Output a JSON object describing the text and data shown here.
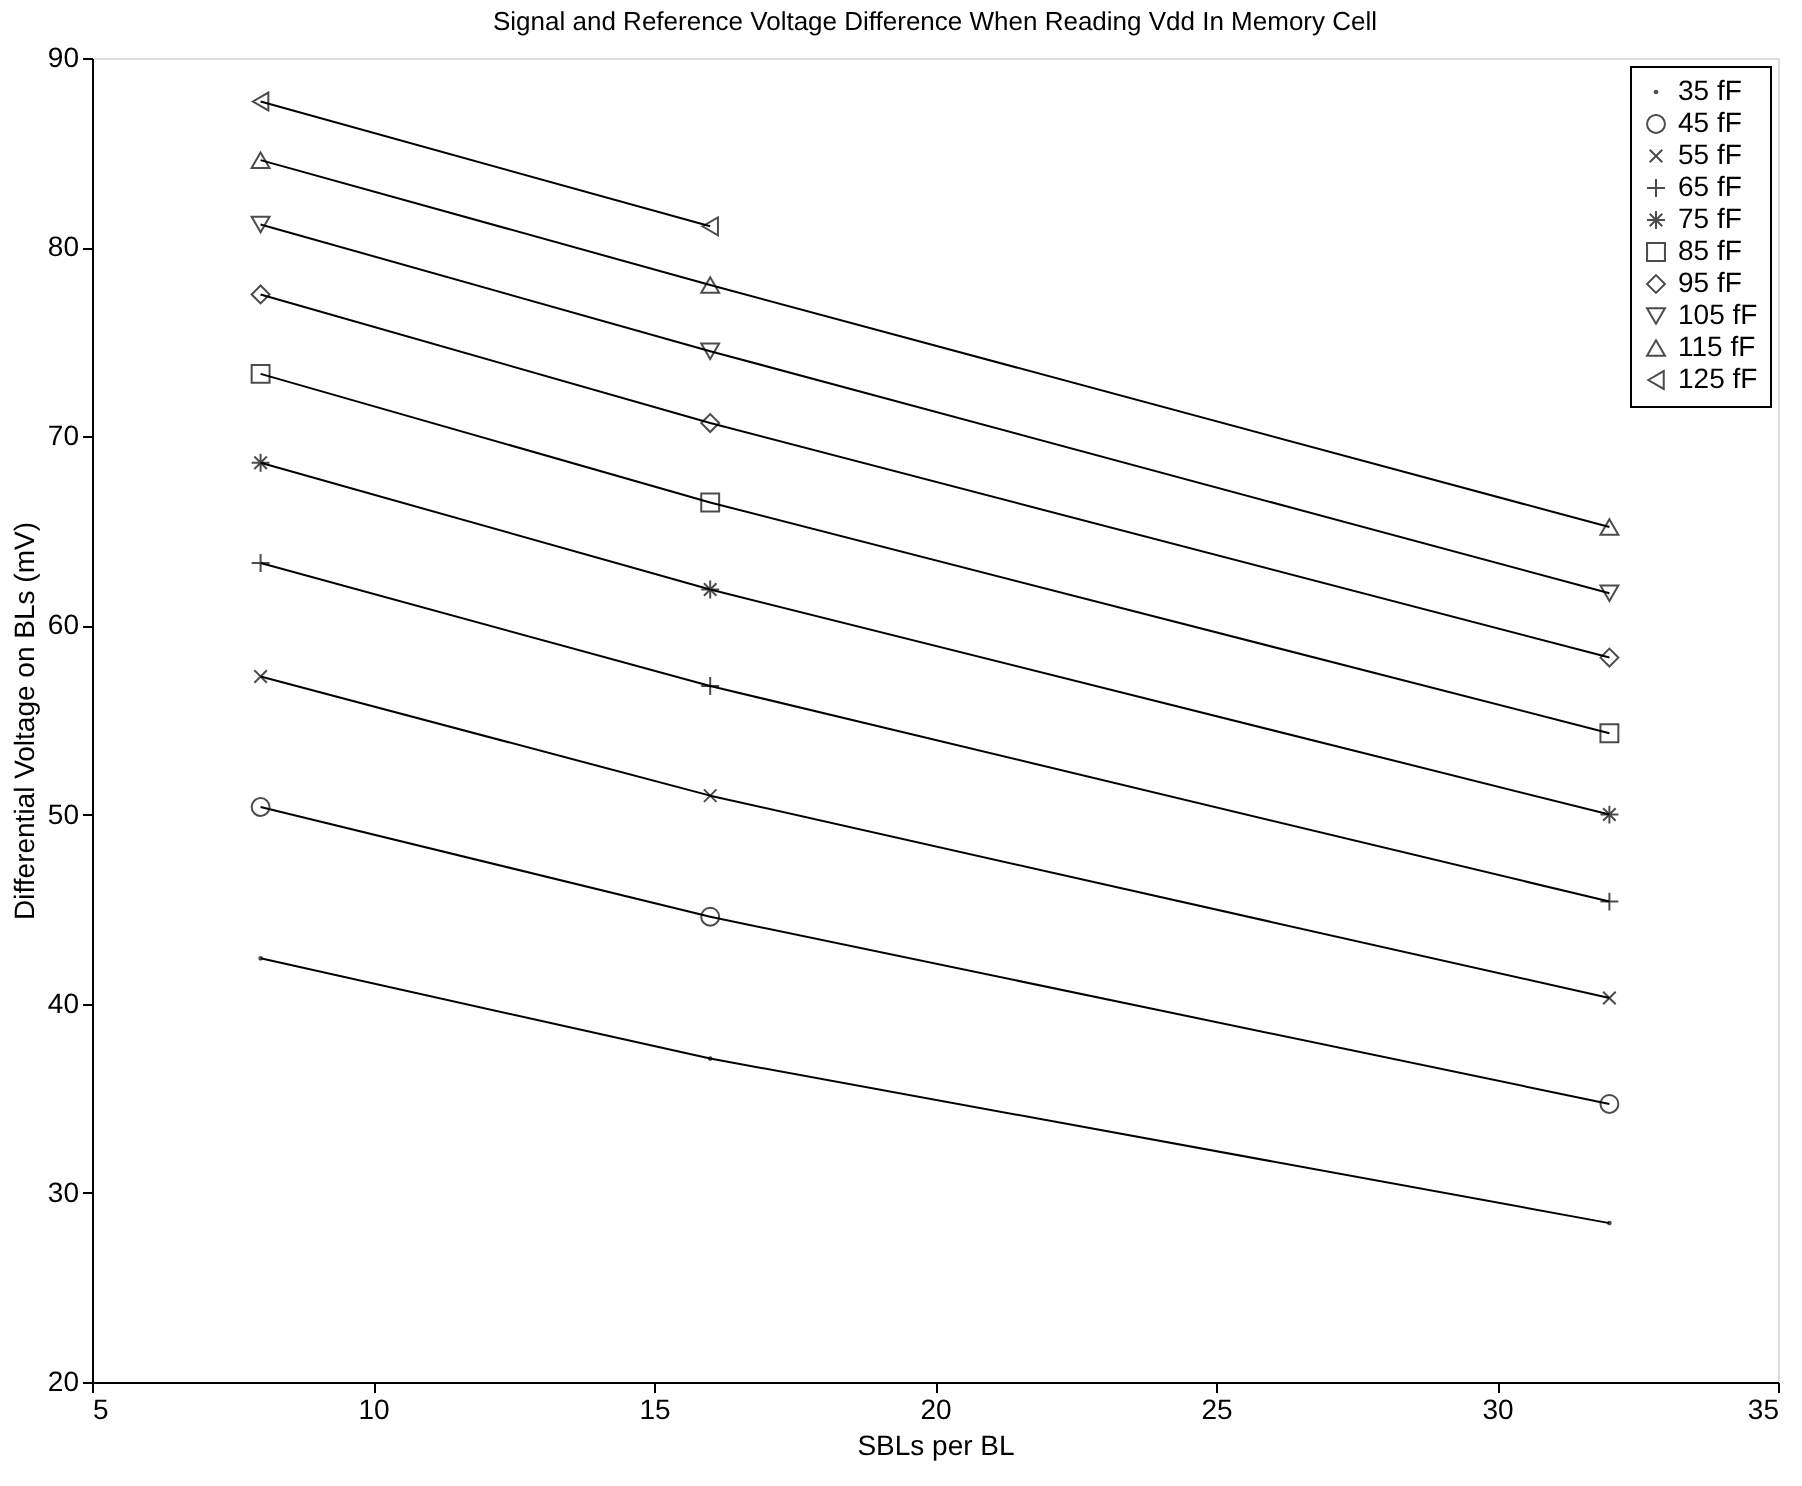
{
  "chart_data": {
    "type": "line",
    "title": "Signal and Reference Voltage Difference When Reading Vdd In Memory Cell",
    "xlabel": "SBLs per BL",
    "ylabel": "Differential Voltage on BLs (mV)",
    "x": [
      8,
      16,
      32
    ],
    "series": [
      {
        "name": "35 fF",
        "color": "#000000",
        "marker": "point",
        "values": [
          42.4,
          37.1,
          28.4
        ]
      },
      {
        "name": "45 fF",
        "color": "#000000",
        "marker": "circle",
        "values": [
          50.4,
          44.6,
          34.7
        ]
      },
      {
        "name": "55 fF",
        "color": "#000000",
        "marker": "x",
        "values": [
          57.3,
          51.0,
          40.3
        ]
      },
      {
        "name": "65 fF",
        "color": "#000000",
        "marker": "plus",
        "values": [
          63.3,
          56.8,
          45.4
        ]
      },
      {
        "name": "75 fF",
        "color": "#000000",
        "marker": "cross",
        "values": [
          68.6,
          61.9,
          50.0
        ]
      },
      {
        "name": "85 fF",
        "color": "#000000",
        "marker": "square",
        "values": [
          73.3,
          66.5,
          54.3
        ]
      },
      {
        "name": "95 fF",
        "color": "#000000",
        "marker": "diamond",
        "values": [
          77.5,
          70.7,
          58.3
        ]
      },
      {
        "name": "105 fF",
        "color": "#000000",
        "marker": "triangle-down",
        "values": [
          81.2,
          74.5,
          61.7
        ]
      },
      {
        "name": "115 fF",
        "color": "#000000",
        "marker": "triangle",
        "values": [
          84.6,
          78.0,
          65.2
        ]
      },
      {
        "name": "125 fF",
        "color": "#000000",
        "marker": "triangle-left",
        "values": [
          87.7,
          81.1,
          null
        ]
      }
    ],
    "xlim": [
      5,
      35
    ],
    "xticks": [
      5,
      10,
      15,
      20,
      25,
      30,
      35
    ],
    "ylim": [
      20,
      90
    ],
    "yticks": [
      20,
      30,
      40,
      50,
      60,
      70,
      80,
      90
    ],
    "grid": false,
    "legend": "top right",
    "line_style": "solid"
  }
}
